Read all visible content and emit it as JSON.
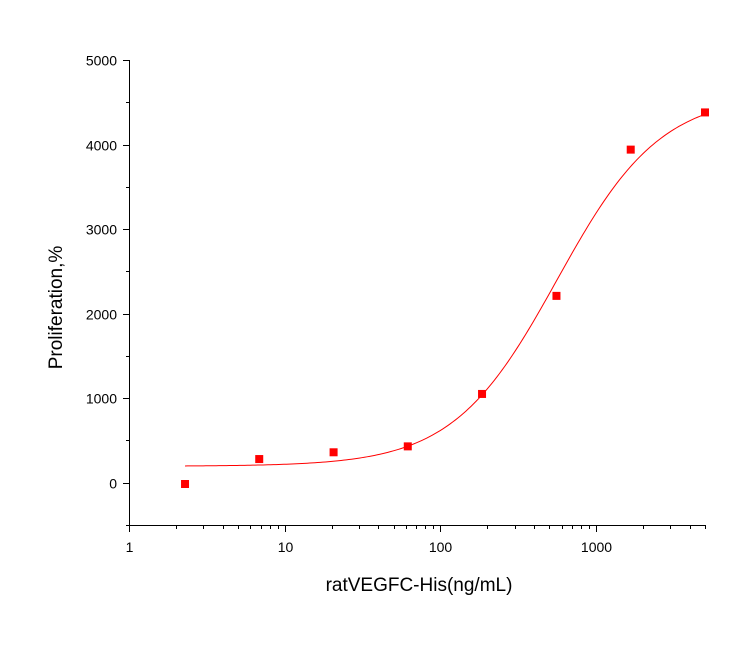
{
  "chart_data": {
    "type": "scatter",
    "xlabel": "ratVEGFC-His(ng/mL)",
    "ylabel": "Proliferation,%",
    "x_scale": "log",
    "xlim": [
      1,
      5000
    ],
    "ylim": [
      -500,
      5000
    ],
    "x_ticks": [
      1,
      10,
      100,
      1000
    ],
    "x_tick_labels": [
      "1",
      "10",
      "100",
      "1000"
    ],
    "y_ticks": [
      0,
      1000,
      2000,
      3000,
      4000,
      5000
    ],
    "y_tick_labels": [
      "0",
      "1000",
      "2000",
      "3000",
      "4000",
      "5000"
    ],
    "grid": false,
    "series": [
      {
        "kind": "points",
        "color": "#ff0000",
        "marker": "square",
        "x": [
          2.29,
          6.86,
          20.6,
          61.7,
          185,
          556,
          1667,
          5000
        ],
        "y": [
          -15,
          280,
          360,
          430,
          1050,
          2210,
          3940,
          4380
        ]
      },
      {
        "kind": "fit-curve",
        "color": "#ff0000",
        "model": "4PL",
        "bottom": 195,
        "top": 4600,
        "ec50": 560,
        "hill": 1.3,
        "x_range": [
          2.29,
          5000
        ]
      }
    ]
  }
}
